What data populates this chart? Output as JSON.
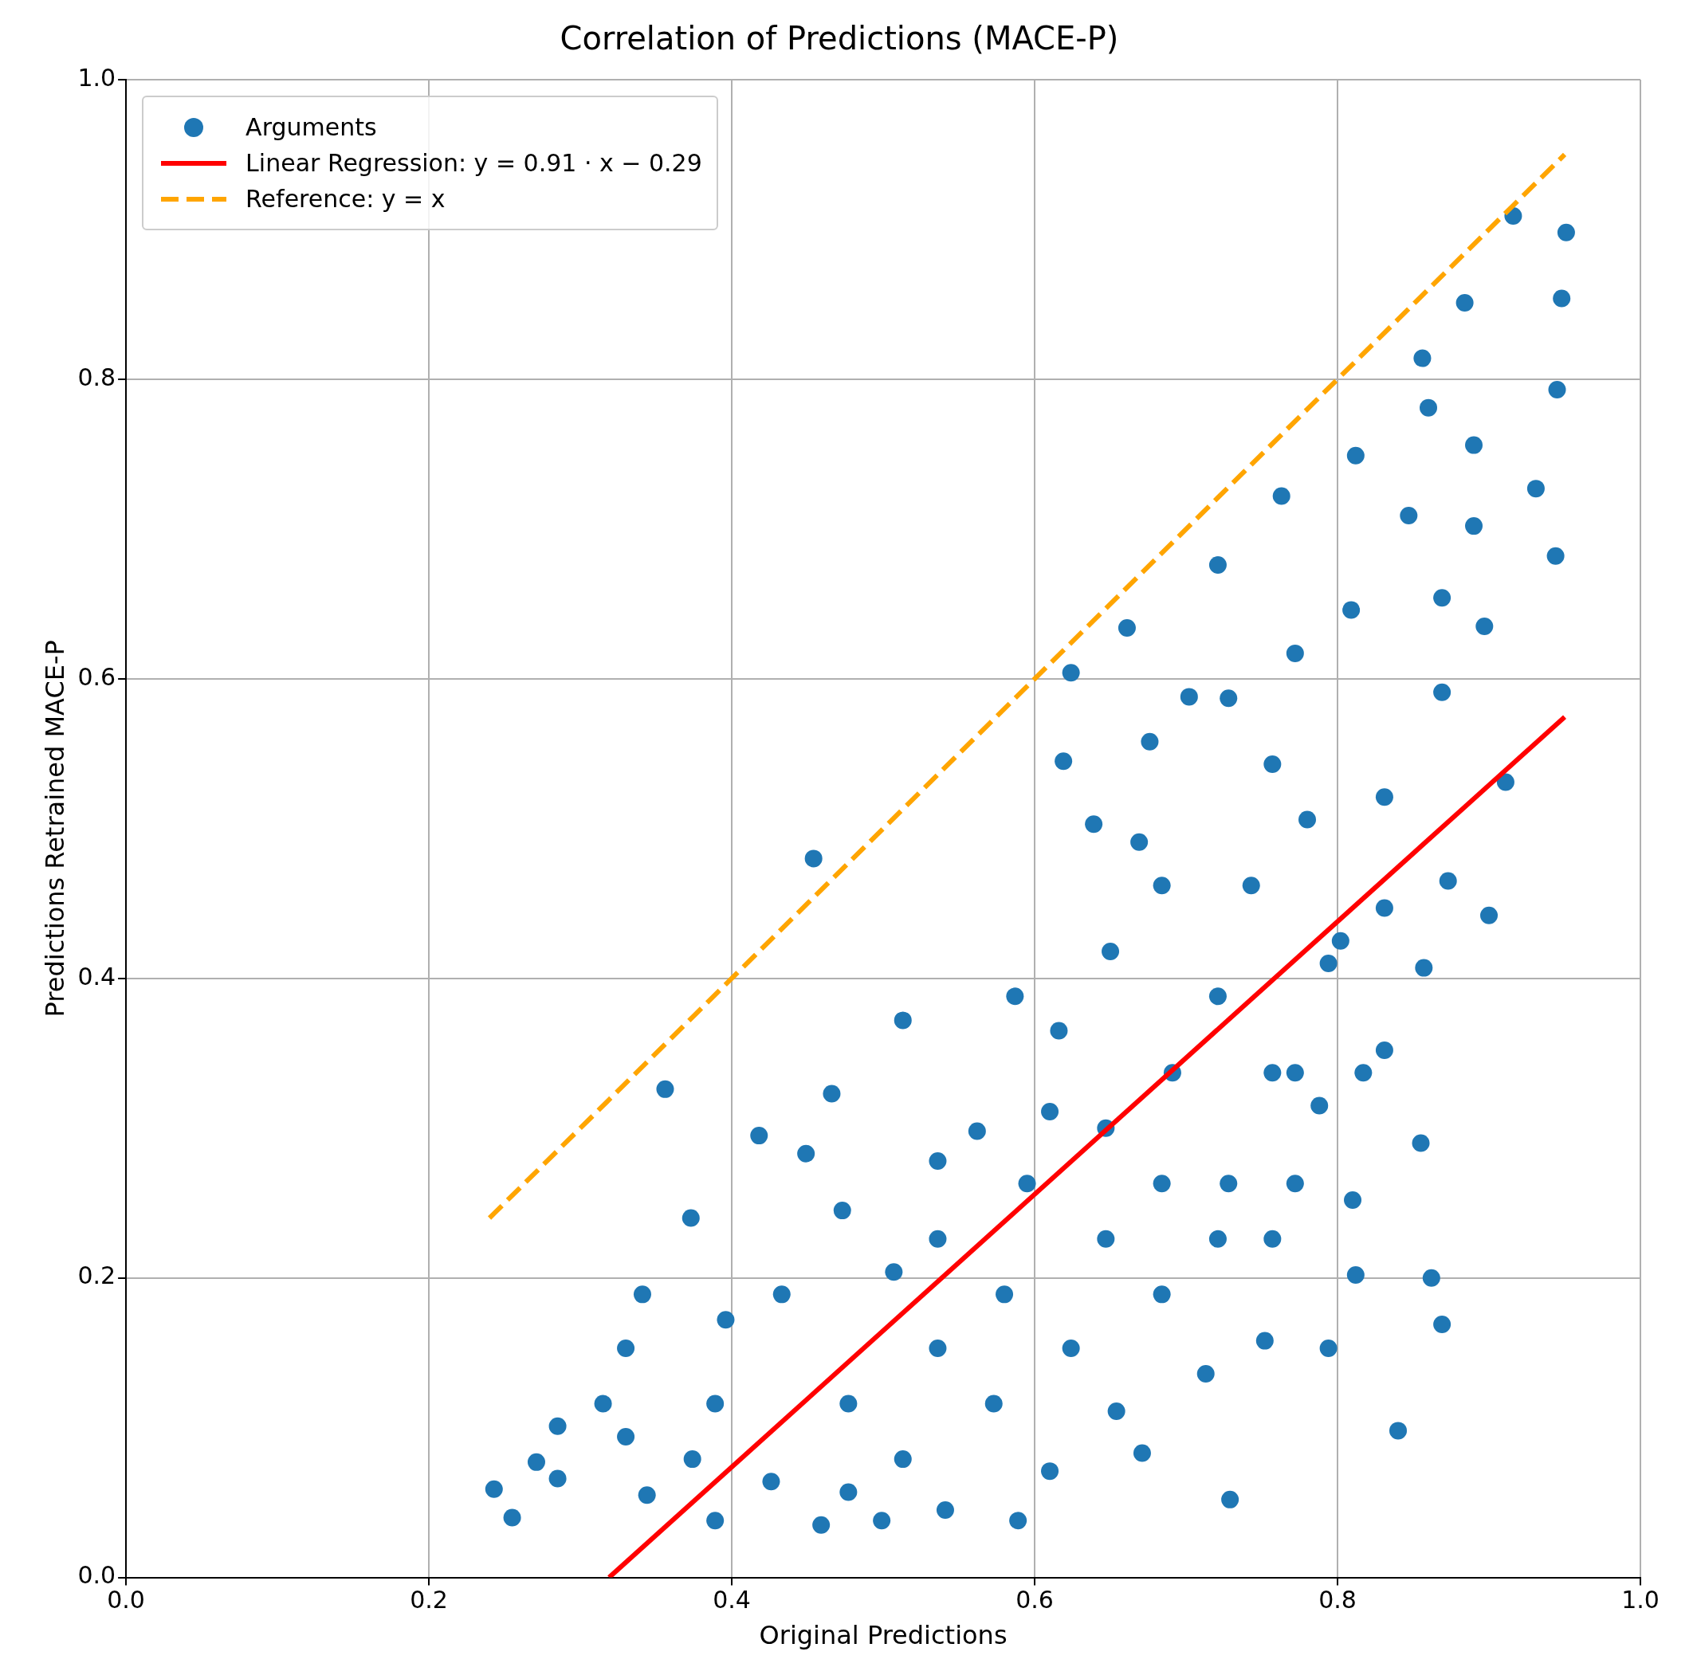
{
  "chart_data": {
    "type": "scatter",
    "title": "Correlation of Predictions (MACE-P)",
    "xlabel": "Original Predictions",
    "ylabel": "Predictions Retrained MACE-P",
    "xlim": [
      0,
      1
    ],
    "ylim": [
      0,
      1
    ],
    "xticks": [
      {
        "value": 0,
        "label": "0.0"
      },
      0.2,
      0.4,
      0.6,
      0.8,
      {
        "value": 1,
        "label": "1.0"
      }
    ],
    "yticks": [
      {
        "value": 0,
        "label": "0.0"
      },
      0.2,
      0.4,
      0.6,
      0.8,
      {
        "value": 1,
        "label": "1.0"
      }
    ],
    "grid": true,
    "legend": "top left",
    "series": [
      {
        "name": "Arguments",
        "marker": "circle",
        "color": "#1f77b4",
        "x": [
          0.916,
          0.951,
          0.948,
          0.945,
          0.944,
          0.931,
          0.884,
          0.856,
          0.86,
          0.89,
          0.812,
          0.763,
          0.721,
          0.661,
          0.624,
          0.702,
          0.454,
          0.356,
          0.513,
          0.587,
          0.466,
          0.373,
          0.243,
          0.255,
          0.589,
          0.729,
          0.84,
          0.869,
          0.862,
          0.855,
          0.857,
          0.873,
          0.9,
          0.911,
          0.812,
          0.81,
          0.752,
          0.713,
          0.671,
          0.654,
          0.541,
          0.499,
          0.459,
          0.389,
          0.344,
          0.285,
          0.271,
          0.341,
          0.396,
          0.418,
          0.449,
          0.473,
          0.536,
          0.562,
          0.61,
          0.616,
          0.65,
          0.639,
          0.619,
          0.676,
          0.757,
          0.78,
          0.802,
          0.831,
          0.869,
          0.897,
          0.809,
          0.869,
          0.847,
          0.89,
          0.772,
          0.728,
          0.691,
          0.721,
          0.757,
          0.772,
          0.794,
          0.757,
          0.684,
          0.647,
          0.624,
          0.61,
          0.573,
          0.536,
          0.513,
          0.477,
          0.433,
          0.389,
          0.315,
          0.33,
          0.374,
          0.426,
          0.477,
          0.536,
          0.58,
          0.595,
          0.647,
          0.684,
          0.721,
          0.772,
          0.817,
          0.831,
          0.743,
          0.684,
          0.669,
          0.794,
          0.831,
          0.507,
          0.285,
          0.33,
          0.728,
          0.788
        ],
        "values": [
          0.909,
          0.898,
          0.854,
          0.793,
          0.682,
          0.727,
          0.851,
          0.814,
          0.781,
          0.756,
          0.749,
          0.722,
          0.676,
          0.634,
          0.604,
          0.588,
          0.48,
          0.326,
          0.372,
          0.388,
          0.323,
          0.24,
          0.059,
          0.04,
          0.038,
          0.052,
          0.098,
          0.169,
          0.2,
          0.29,
          0.407,
          0.465,
          0.442,
          0.531,
          0.202,
          0.252,
          0.158,
          0.136,
          0.083,
          0.111,
          0.045,
          0.038,
          0.035,
          0.038,
          0.055,
          0.066,
          0.077,
          0.189,
          0.172,
          0.295,
          0.283,
          0.245,
          0.278,
          0.298,
          0.311,
          0.365,
          0.418,
          0.503,
          0.545,
          0.558,
          0.543,
          0.506,
          0.425,
          0.521,
          0.591,
          0.635,
          0.646,
          0.654,
          0.709,
          0.702,
          0.617,
          0.587,
          0.337,
          0.388,
          0.337,
          0.263,
          0.153,
          0.226,
          0.189,
          0.226,
          0.153,
          0.071,
          0.116,
          0.153,
          0.079,
          0.116,
          0.189,
          0.116,
          0.116,
          0.153,
          0.079,
          0.064,
          0.057,
          0.226,
          0.189,
          0.263,
          0.3,
          0.263,
          0.226,
          0.337,
          0.337,
          0.352,
          0.462,
          0.462,
          0.491,
          0.41,
          0.447,
          0.204,
          0.101,
          0.094,
          0.263,
          0.315
        ]
      },
      {
        "name": "Linear Regression: y = 0.91 · x − 0.29",
        "type": "line",
        "line_style": "solid",
        "color": "#ff0000",
        "x": [
          0.319,
          0.95
        ],
        "values": [
          0.0,
          0.5745
        ]
      },
      {
        "name": "Reference: y = x",
        "type": "line",
        "line_style": "dashed",
        "color": "#ffa500",
        "x": [
          0.24,
          0.95
        ],
        "values": [
          0.24,
          0.95
        ]
      }
    ]
  }
}
